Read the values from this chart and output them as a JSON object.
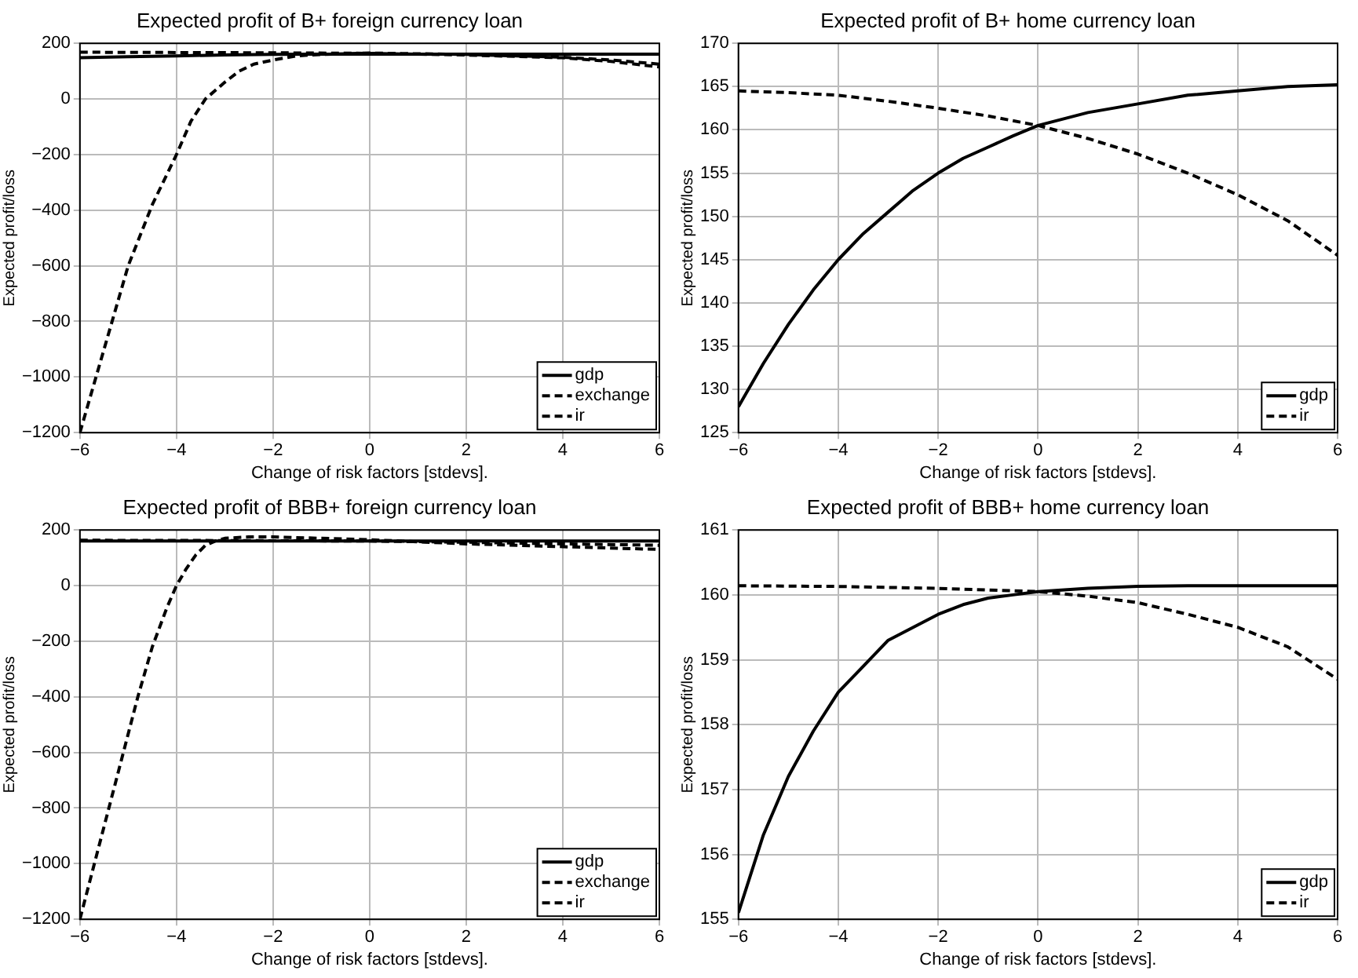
{
  "chart_data": [
    {
      "type": "line",
      "title": "Expected profit of B+ foreign currency loan",
      "xlabel": "Change of risk factors [stdevs].",
      "ylabel": "Expected profit/loss",
      "xlim": [
        -6,
        6
      ],
      "xticks": [
        -6,
        -4,
        -2,
        0,
        2,
        4,
        6
      ],
      "ylim": [
        -1200,
        200
      ],
      "yticks": [
        -1200,
        -1000,
        -800,
        -600,
        -400,
        -200,
        0,
        200
      ],
      "grid": true,
      "legend": "bottom right",
      "marker": "none",
      "series": [
        {
          "name": "gdp",
          "color": "#000000",
          "line_style": "solid",
          "x": [
            -6,
            -5,
            -4,
            -3,
            -2,
            -1,
            0,
            2,
            4,
            6
          ],
          "values": [
            148,
            152,
            155,
            158,
            160,
            161,
            161,
            161,
            161,
            161
          ]
        },
        {
          "name": "exchange",
          "color": "#000000",
          "line_style": "dashed",
          "x": [
            -6,
            -5.5,
            -5,
            -4.5,
            -4,
            -3.7,
            -3.4,
            -3,
            -2.7,
            -2.4,
            -2,
            -1.5,
            -1,
            0,
            2,
            4,
            5,
            6
          ],
          "values": [
            -1200,
            -900,
            -600,
            -380,
            -200,
            -80,
            0,
            60,
            100,
            125,
            140,
            155,
            160,
            165,
            160,
            150,
            140,
            125
          ]
        },
        {
          "name": "ir",
          "color": "#000000",
          "line_style": "dashed",
          "x": [
            -6,
            -4,
            -2,
            0,
            2,
            4,
            5,
            6
          ],
          "values": [
            168,
            167,
            166,
            164,
            158,
            148,
            135,
            115
          ]
        }
      ]
    },
    {
      "type": "line",
      "title": "Expected profit of B+ home currency loan",
      "xlabel": "Change of risk factors [stdevs].",
      "ylabel": "Expected profit/loss",
      "xlim": [
        -6,
        6
      ],
      "xticks": [
        -6,
        -4,
        -2,
        0,
        2,
        4,
        6
      ],
      "ylim": [
        125,
        170
      ],
      "yticks": [
        125,
        130,
        135,
        140,
        145,
        150,
        155,
        160,
        165,
        170
      ],
      "grid": true,
      "legend": "bottom right",
      "marker": "none",
      "series": [
        {
          "name": "gdp",
          "color": "#000000",
          "line_style": "solid",
          "x": [
            -6,
            -5.5,
            -5,
            -4.5,
            -4,
            -3.5,
            -3,
            -2.5,
            -2,
            -1.5,
            -1,
            -0.5,
            0,
            1,
            2,
            3,
            4,
            5,
            6
          ],
          "values": [
            128,
            133,
            137.5,
            141.5,
            145,
            148,
            150.5,
            153,
            155,
            156.7,
            158,
            159.3,
            160.5,
            162,
            163,
            164,
            164.5,
            165,
            165.2
          ]
        },
        {
          "name": "ir",
          "color": "#000000",
          "line_style": "dashed",
          "x": [
            -6,
            -5,
            -4,
            -3,
            -2,
            -1,
            0,
            1,
            2,
            3,
            4,
            5,
            6
          ],
          "values": [
            164.5,
            164.3,
            164,
            163.3,
            162.5,
            161.6,
            160.5,
            159,
            157.2,
            155,
            152.5,
            149.5,
            145.5
          ]
        }
      ]
    },
    {
      "type": "line",
      "title": "Expected profit of BBB+ foreign currency loan",
      "xlabel": "Change of risk factors [stdevs].",
      "ylabel": "Expected profit/loss",
      "xlim": [
        -6,
        6
      ],
      "xticks": [
        -6,
        -4,
        -2,
        0,
        2,
        4,
        6
      ],
      "ylim": [
        -1200,
        200
      ],
      "yticks": [
        -1200,
        -1000,
        -800,
        -600,
        -400,
        -200,
        0,
        200
      ],
      "grid": true,
      "legend": "bottom right",
      "marker": "none",
      "series": [
        {
          "name": "gdp",
          "color": "#000000",
          "line_style": "solid",
          "x": [
            -6,
            -3,
            0,
            3,
            6
          ],
          "values": [
            160,
            160,
            160,
            160,
            160
          ]
        },
        {
          "name": "exchange",
          "color": "#000000",
          "line_style": "dashed",
          "x": [
            -6,
            -5.7,
            -5.4,
            -5.1,
            -4.8,
            -4.5,
            -4.2,
            -4,
            -3.8,
            -3.6,
            -3.4,
            -3.2,
            -3,
            -2.5,
            -2,
            -1,
            0,
            2,
            4,
            6
          ],
          "values": [
            -1200,
            -1000,
            -800,
            -600,
            -400,
            -220,
            -80,
            0,
            60,
            110,
            145,
            160,
            170,
            175,
            175,
            170,
            165,
            150,
            140,
            130
          ]
        },
        {
          "name": "ir",
          "color": "#000000",
          "line_style": "dashed",
          "x": [
            -6,
            -3,
            0,
            2,
            4,
            6
          ],
          "values": [
            163,
            162,
            160,
            156,
            150,
            145
          ]
        }
      ]
    },
    {
      "type": "line",
      "title": "Expected profit of BBB+ home currency loan",
      "xlabel": "Change of risk factors [stdevs].",
      "ylabel": "Expected profit/loss",
      "xlim": [
        -6,
        6
      ],
      "xticks": [
        -6,
        -4,
        -2,
        0,
        2,
        4,
        6
      ],
      "ylim": [
        155,
        161
      ],
      "yticks": [
        155,
        156,
        157,
        158,
        159,
        160,
        161
      ],
      "grid": true,
      "legend": "bottom right",
      "marker": "none",
      "series": [
        {
          "name": "gdp",
          "color": "#000000",
          "line_style": "solid",
          "x": [
            -6,
            -5.5,
            -5,
            -4.5,
            -4,
            -3.5,
            -3,
            -2.5,
            -2,
            -1.5,
            -1,
            -0.5,
            0,
            1,
            2,
            3,
            4,
            6
          ],
          "values": [
            155.1,
            156.3,
            157.2,
            157.9,
            158.5,
            158.9,
            159.3,
            159.5,
            159.7,
            159.85,
            159.95,
            160,
            160.05,
            160.1,
            160.13,
            160.14,
            160.14,
            160.14
          ]
        },
        {
          "name": "ir",
          "color": "#000000",
          "line_style": "dashed",
          "x": [
            -6,
            -4,
            -2,
            0,
            1,
            2,
            3,
            4,
            5,
            6
          ],
          "values": [
            160.14,
            160.13,
            160.1,
            160.05,
            159.98,
            159.88,
            159.7,
            159.5,
            159.2,
            158.7
          ]
        }
      ]
    }
  ]
}
